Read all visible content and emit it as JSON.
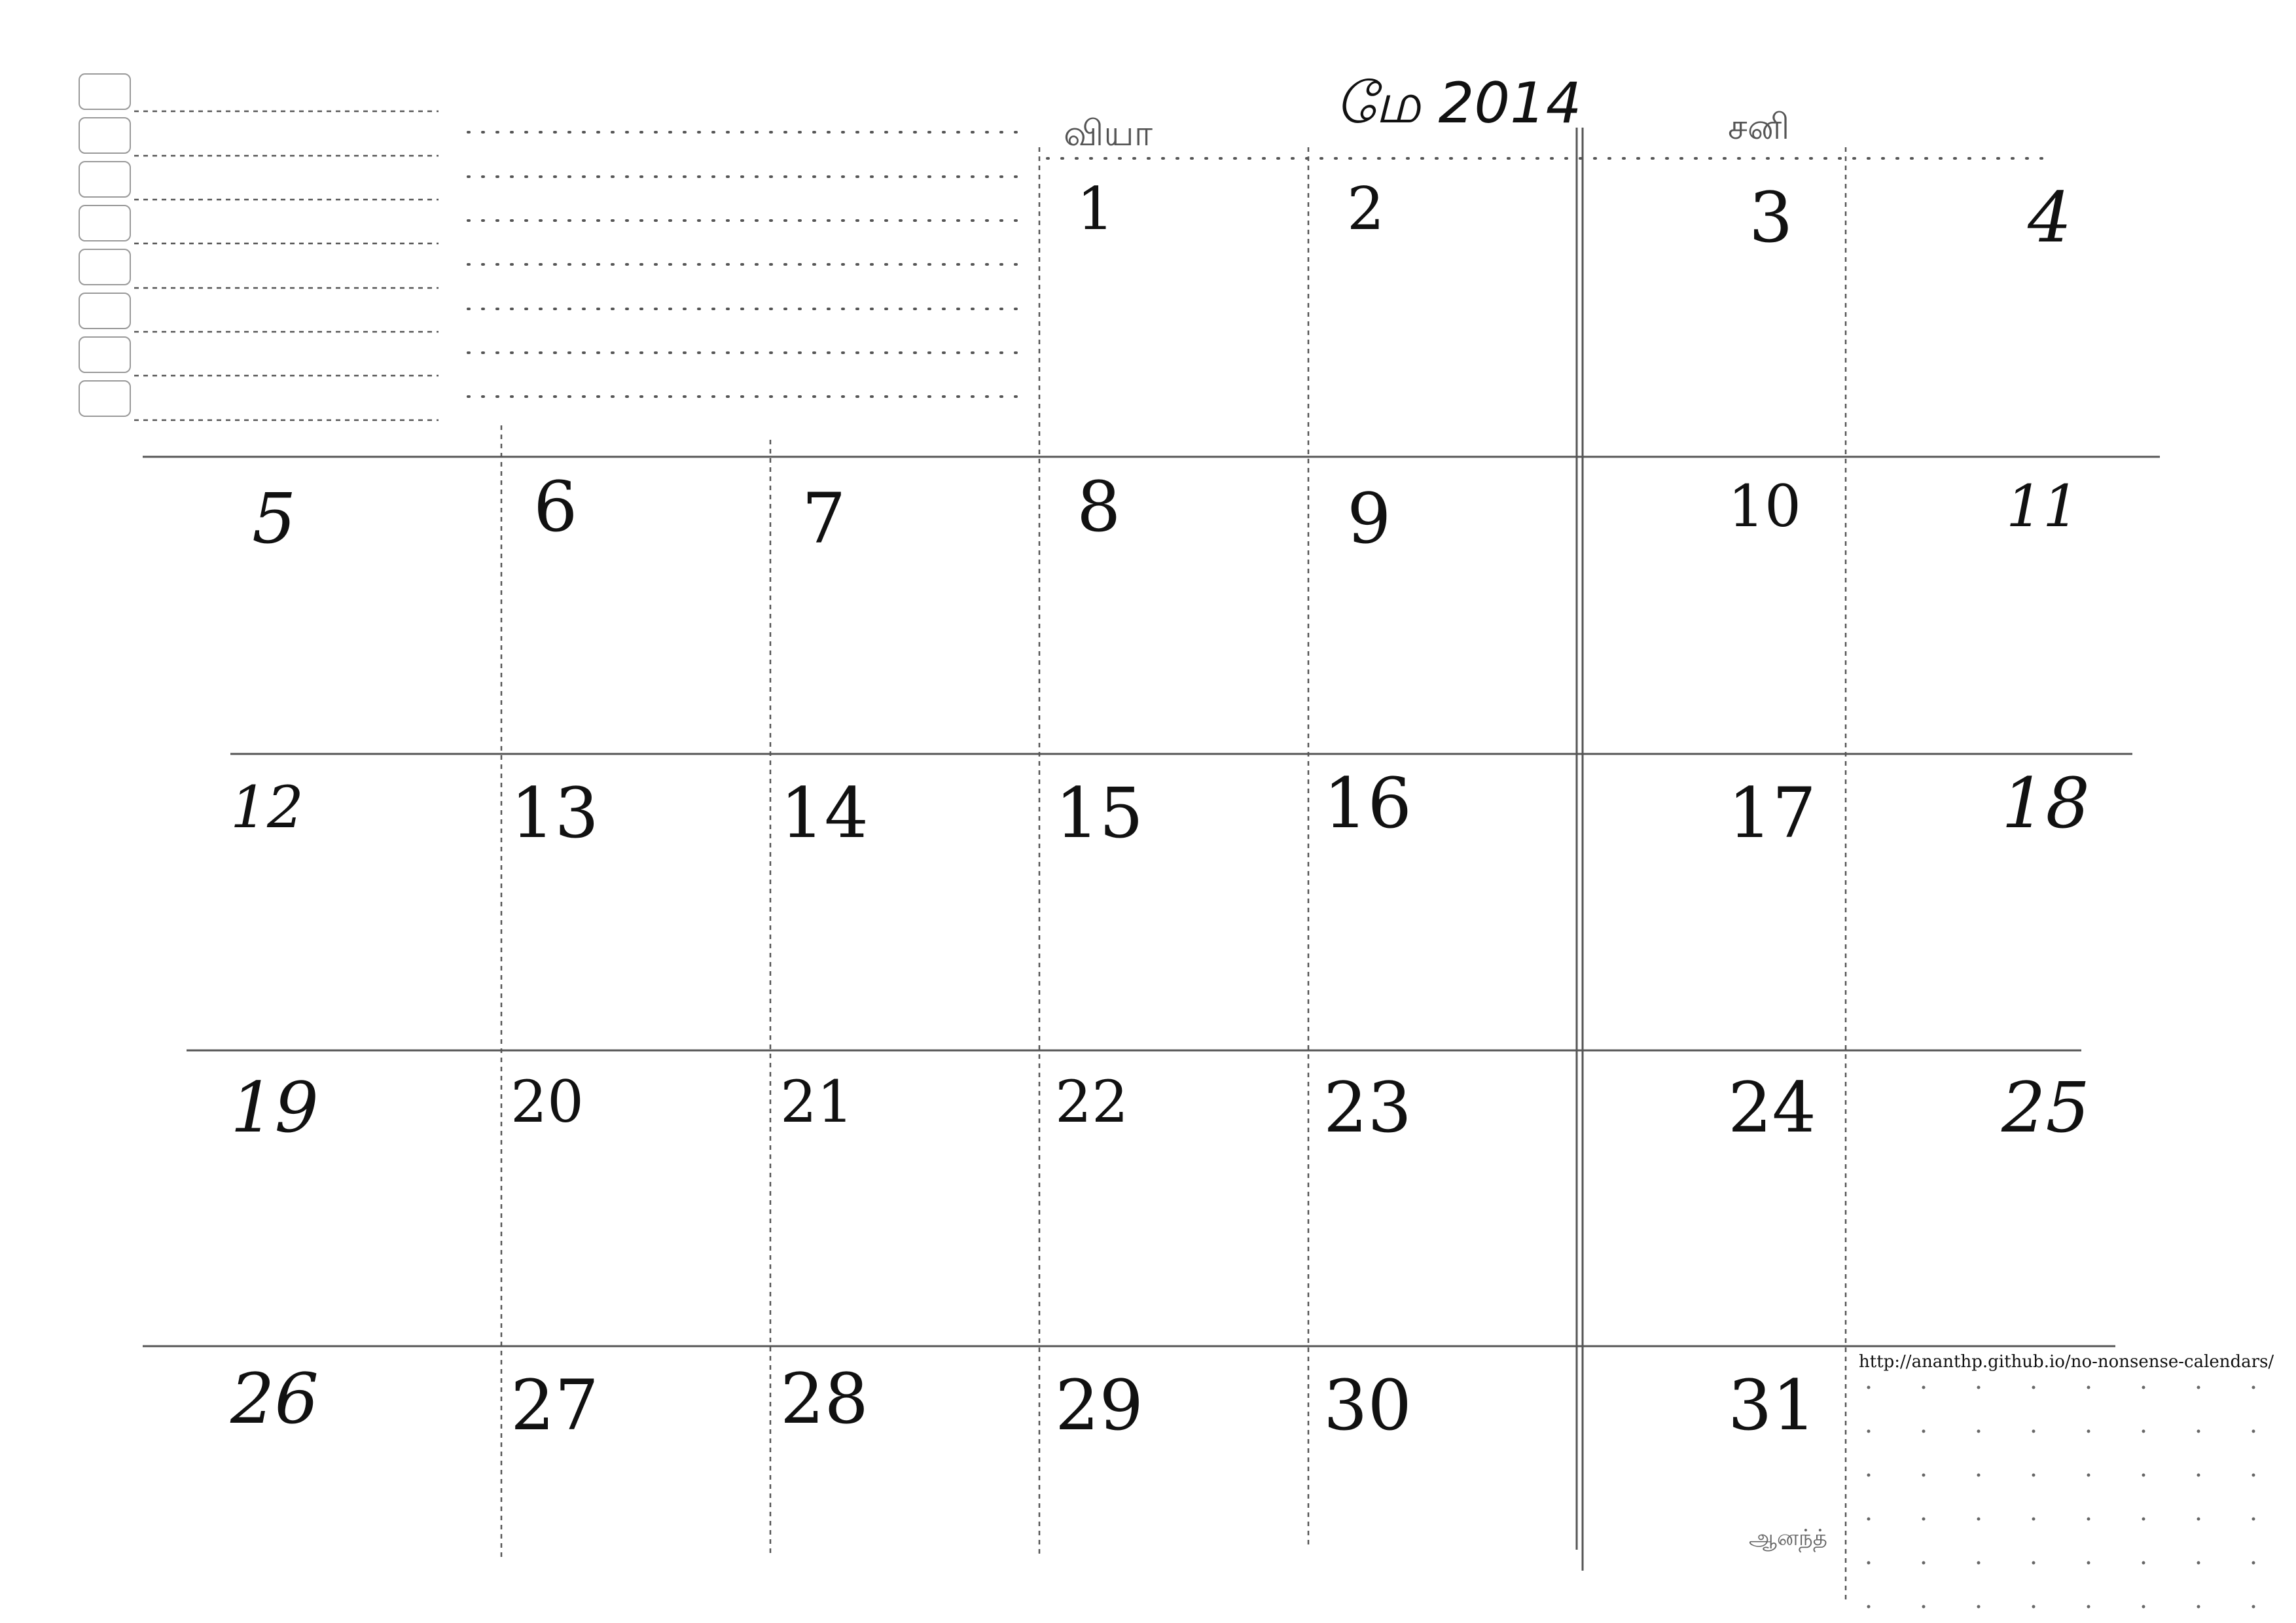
{
  "calendar": {
    "month_title": "மே 2014",
    "day_headers": [
      "வியா",
      "சனி"
    ],
    "days": [
      {
        "n": "1"
      },
      {
        "n": "2"
      },
      {
        "n": "3"
      },
      {
        "n": "4"
      },
      {
        "n": "5"
      },
      {
        "n": "6"
      },
      {
        "n": "7"
      },
      {
        "n": "8"
      },
      {
        "n": "9"
      },
      {
        "n": "10"
      },
      {
        "n": "11"
      },
      {
        "n": "12"
      },
      {
        "n": "13"
      },
      {
        "n": "14"
      },
      {
        "n": "15"
      },
      {
        "n": "16"
      },
      {
        "n": "17"
      },
      {
        "n": "18"
      },
      {
        "n": "19"
      },
      {
        "n": "20"
      },
      {
        "n": "21"
      },
      {
        "n": "22"
      },
      {
        "n": "23"
      },
      {
        "n": "24"
      },
      {
        "n": "25"
      },
      {
        "n": "26"
      },
      {
        "n": "27"
      },
      {
        "n": "28"
      },
      {
        "n": "29"
      },
      {
        "n": "30"
      },
      {
        "n": "31"
      }
    ],
    "url": "http://ananthp.github.io/no-nonsense-calendars/",
    "signature": "ஆனந்த்"
  }
}
